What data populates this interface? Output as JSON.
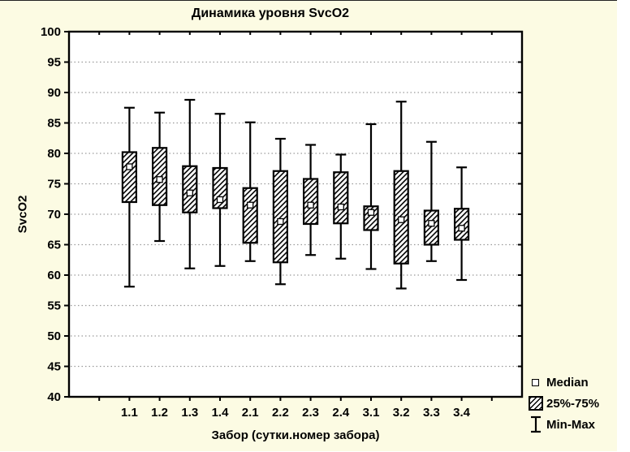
{
  "canvas": {
    "bg": "#FCFBE3"
  },
  "colors": {
    "plot_bg": "#FFFFFF",
    "frame": "#000000",
    "grid": "#9A9A9A",
    "text": "#000000",
    "hatch": "#000000"
  },
  "chart_data": {
    "type": "box",
    "title": "Динамика уровня SvcO2",
    "xlabel": "Забор (сутки.номер забора)",
    "ylabel": "SvcO2",
    "ylim": [
      40,
      100
    ],
    "ytick_step": 5,
    "grid": "horizontal-dotted",
    "legend_position": "bottom-right-outside",
    "categories": [
      "1.1",
      "1.2",
      "1.3",
      "1.4",
      "2.1",
      "2.2",
      "2.3",
      "2.4",
      "3.1",
      "3.2",
      "3.3",
      "3.4"
    ],
    "series": [
      {
        "category": "1.1",
        "min": 58.1,
        "q1": 72.0,
        "median": 77.8,
        "q3": 80.2,
        "max": 87.5
      },
      {
        "category": "1.2",
        "min": 65.6,
        "q1": 71.5,
        "median": 75.7,
        "q3": 80.9,
        "max": 86.7
      },
      {
        "category": "1.3",
        "min": 61.1,
        "q1": 70.3,
        "median": 73.5,
        "q3": 77.9,
        "max": 88.8
      },
      {
        "category": "1.4",
        "min": 61.5,
        "q1": 71.0,
        "median": 72.4,
        "q3": 77.6,
        "max": 86.5
      },
      {
        "category": "2.1",
        "min": 62.3,
        "q1": 65.3,
        "median": 71.5,
        "q3": 74.3,
        "max": 85.1
      },
      {
        "category": "2.2",
        "min": 58.5,
        "q1": 62.1,
        "median": 68.8,
        "q3": 77.1,
        "max": 82.4
      },
      {
        "category": "2.3",
        "min": 63.3,
        "q1": 68.4,
        "median": 71.5,
        "q3": 75.8,
        "max": 81.4
      },
      {
        "category": "2.4",
        "min": 62.7,
        "q1": 68.5,
        "median": 71.2,
        "q3": 76.9,
        "max": 79.8
      },
      {
        "category": "3.1",
        "min": 61.0,
        "q1": 67.4,
        "median": 70.3,
        "q3": 71.3,
        "max": 84.8
      },
      {
        "category": "3.2",
        "min": 57.8,
        "q1": 61.9,
        "median": 69.1,
        "q3": 77.1,
        "max": 88.5
      },
      {
        "category": "3.3",
        "min": 62.3,
        "q1": 65.0,
        "median": 68.5,
        "q3": 70.6,
        "max": 81.9
      },
      {
        "category": "3.4",
        "min": 59.2,
        "q1": 65.8,
        "median": 67.7,
        "q3": 70.9,
        "max": 77.7
      }
    ],
    "legend": [
      {
        "marker": "median-square-icon",
        "label": "Median"
      },
      {
        "marker": "hatch-box-icon",
        "label": "25%-75%"
      },
      {
        "marker": "minmax-whisker-icon",
        "label": "Min-Max"
      }
    ]
  }
}
